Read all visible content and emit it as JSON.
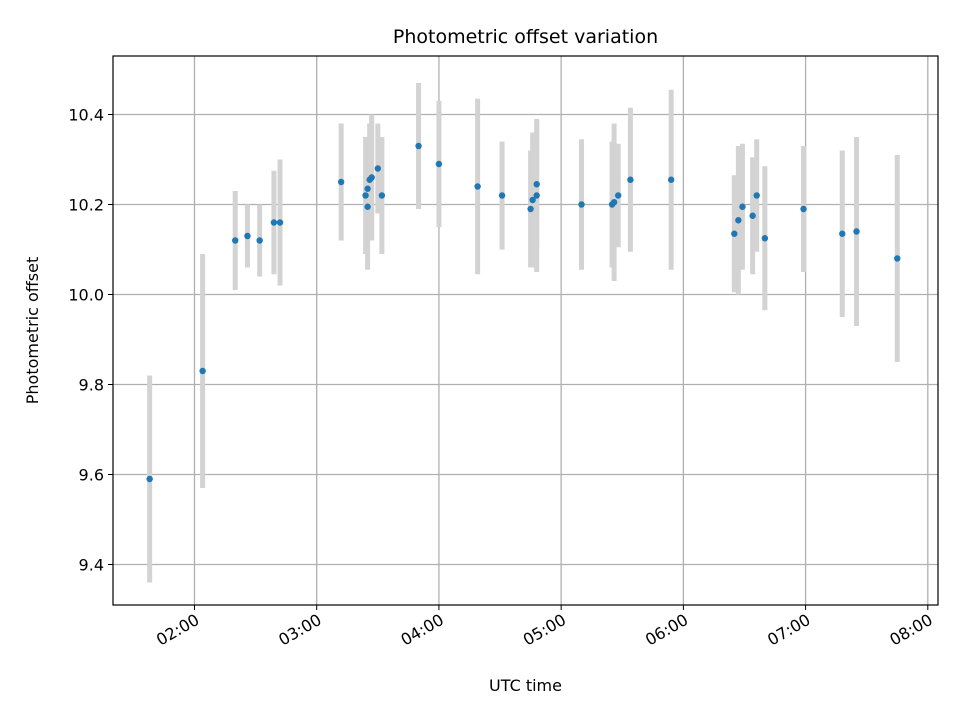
{
  "chart_data": {
    "type": "scatter",
    "title": "Photometric offset variation",
    "xlabel": "UTC time",
    "ylabel": "Photometric offset",
    "x_ticks": [
      "02:00",
      "03:00",
      "04:00",
      "05:00",
      "06:00",
      "07:00",
      "08:00"
    ],
    "y_ticks": [
      "9.4",
      "9.6",
      "9.8",
      "10.0",
      "10.2",
      "10.4"
    ],
    "xlim": [
      "01:20",
      "08:05"
    ],
    "ylim": [
      9.31,
      10.53
    ],
    "grid": true,
    "point_color": "#1f77b4",
    "errorbar_color": "#d3d3d3",
    "points": [
      {
        "x": "01:38",
        "y": 9.59,
        "err": 0.23
      },
      {
        "x": "02:04",
        "y": 9.83,
        "err": 0.26
      },
      {
        "x": "02:20",
        "y": 10.12,
        "err": 0.11
      },
      {
        "x": "02:26",
        "y": 10.13,
        "err": 0.07
      },
      {
        "x": "02:32",
        "y": 10.12,
        "err": 0.08
      },
      {
        "x": "02:39",
        "y": 10.16,
        "err": 0.115
      },
      {
        "x": "02:42",
        "y": 10.16,
        "err": 0.14
      },
      {
        "x": "03:12",
        "y": 10.25,
        "err": 0.13
      },
      {
        "x": "03:24",
        "y": 10.22,
        "err": 0.13
      },
      {
        "x": "03:25",
        "y": 10.235,
        "err": 0.115
      },
      {
        "x": "03:25",
        "y": 10.195,
        "err": 0.14
      },
      {
        "x": "03:26",
        "y": 10.255,
        "err": 0.125
      },
      {
        "x": "03:27",
        "y": 10.26,
        "err": 0.14
      },
      {
        "x": "03:30",
        "y": 10.28,
        "err": 0.1
      },
      {
        "x": "03:32",
        "y": 10.22,
        "err": 0.13
      },
      {
        "x": "03:50",
        "y": 10.33,
        "err": 0.14
      },
      {
        "x": "04:00",
        "y": 10.29,
        "err": 0.14
      },
      {
        "x": "04:19",
        "y": 10.24,
        "err": 0.195
      },
      {
        "x": "04:31",
        "y": 10.22,
        "err": 0.12
      },
      {
        "x": "04:45",
        "y": 10.19,
        "err": 0.13
      },
      {
        "x": "04:46",
        "y": 10.21,
        "err": 0.15
      },
      {
        "x": "04:48",
        "y": 10.245,
        "err": 0.14
      },
      {
        "x": "04:48",
        "y": 10.22,
        "err": 0.17
      },
      {
        "x": "05:10",
        "y": 10.2,
        "err": 0.145
      },
      {
        "x": "05:25",
        "y": 10.2,
        "err": 0.14
      },
      {
        "x": "05:26",
        "y": 10.205,
        "err": 0.175
      },
      {
        "x": "05:28",
        "y": 10.22,
        "err": 0.115
      },
      {
        "x": "05:34",
        "y": 10.255,
        "err": 0.16
      },
      {
        "x": "05:54",
        "y": 10.255,
        "err": 0.2
      },
      {
        "x": "06:25",
        "y": 10.135,
        "err": 0.13
      },
      {
        "x": "06:27",
        "y": 10.165,
        "err": 0.165
      },
      {
        "x": "06:29",
        "y": 10.195,
        "err": 0.14
      },
      {
        "x": "06:34",
        "y": 10.175,
        "err": 0.13
      },
      {
        "x": "06:36",
        "y": 10.22,
        "err": 0.125
      },
      {
        "x": "06:40",
        "y": 10.125,
        "err": 0.16
      },
      {
        "x": "06:59",
        "y": 10.19,
        "err": 0.14
      },
      {
        "x": "07:18",
        "y": 10.135,
        "err": 0.185
      },
      {
        "x": "07:25",
        "y": 10.14,
        "err": 0.21
      },
      {
        "x": "07:45",
        "y": 10.08,
        "err": 0.23
      }
    ]
  }
}
